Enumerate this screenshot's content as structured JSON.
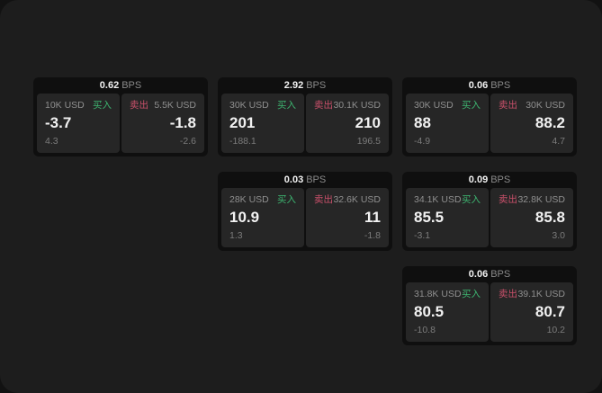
{
  "colors": {
    "background": "#1d1d1d",
    "card_background": "#0f0f0f",
    "panel_background": "#262626",
    "buy_green": "#3db470",
    "sell_red": "#c9506a",
    "text_primary": "#f2f2f2",
    "text_secondary": "#8f8f8f"
  },
  "cards": [
    {
      "bps": "0.62",
      "bps_unit": "BPS",
      "buy": {
        "amount": "10K USD",
        "label": "买入",
        "value": "-3.7",
        "sub_value": "4.3"
      },
      "sell": {
        "label": "卖出",
        "amount": "5.5K USD",
        "value": "-1.8",
        "sub_value": "-2.6"
      }
    },
    {
      "bps": "2.92",
      "bps_unit": "BPS",
      "buy": {
        "amount": "30K USD",
        "label": "买入",
        "value": "201",
        "sub_value": "-188.1"
      },
      "sell": {
        "label": "卖出",
        "amount": "30.1K USD",
        "value": "210",
        "sub_value": "196.5"
      }
    },
    {
      "bps": "0.06",
      "bps_unit": "BPS",
      "buy": {
        "amount": "30K USD",
        "label": "买入",
        "value": "88",
        "sub_value": "-4.9"
      },
      "sell": {
        "label": "卖出",
        "amount": "30K USD",
        "value": "88.2",
        "sub_value": "4.7"
      }
    },
    {
      "bps": "0.03",
      "bps_unit": "BPS",
      "buy": {
        "amount": "28K USD",
        "label": "买入",
        "value": "10.9",
        "sub_value": "1.3"
      },
      "sell": {
        "label": "卖出",
        "amount": "32.6K USD",
        "value": "11",
        "sub_value": "-1.8"
      }
    },
    {
      "bps": "0.09",
      "bps_unit": "BPS",
      "buy": {
        "amount": "34.1K USD",
        "label": "买入",
        "value": "85.5",
        "sub_value": "-3.1"
      },
      "sell": {
        "label": "卖出",
        "amount": "32.8K USD",
        "value": "85.8",
        "sub_value": "3.0"
      }
    },
    {
      "bps": "0.06",
      "bps_unit": "BPS",
      "buy": {
        "amount": "31.8K USD",
        "label": "买入",
        "value": "80.5",
        "sub_value": "-10.8"
      },
      "sell": {
        "label": "卖出",
        "amount": "39.1K USD",
        "value": "80.7",
        "sub_value": "10.2"
      }
    }
  ]
}
